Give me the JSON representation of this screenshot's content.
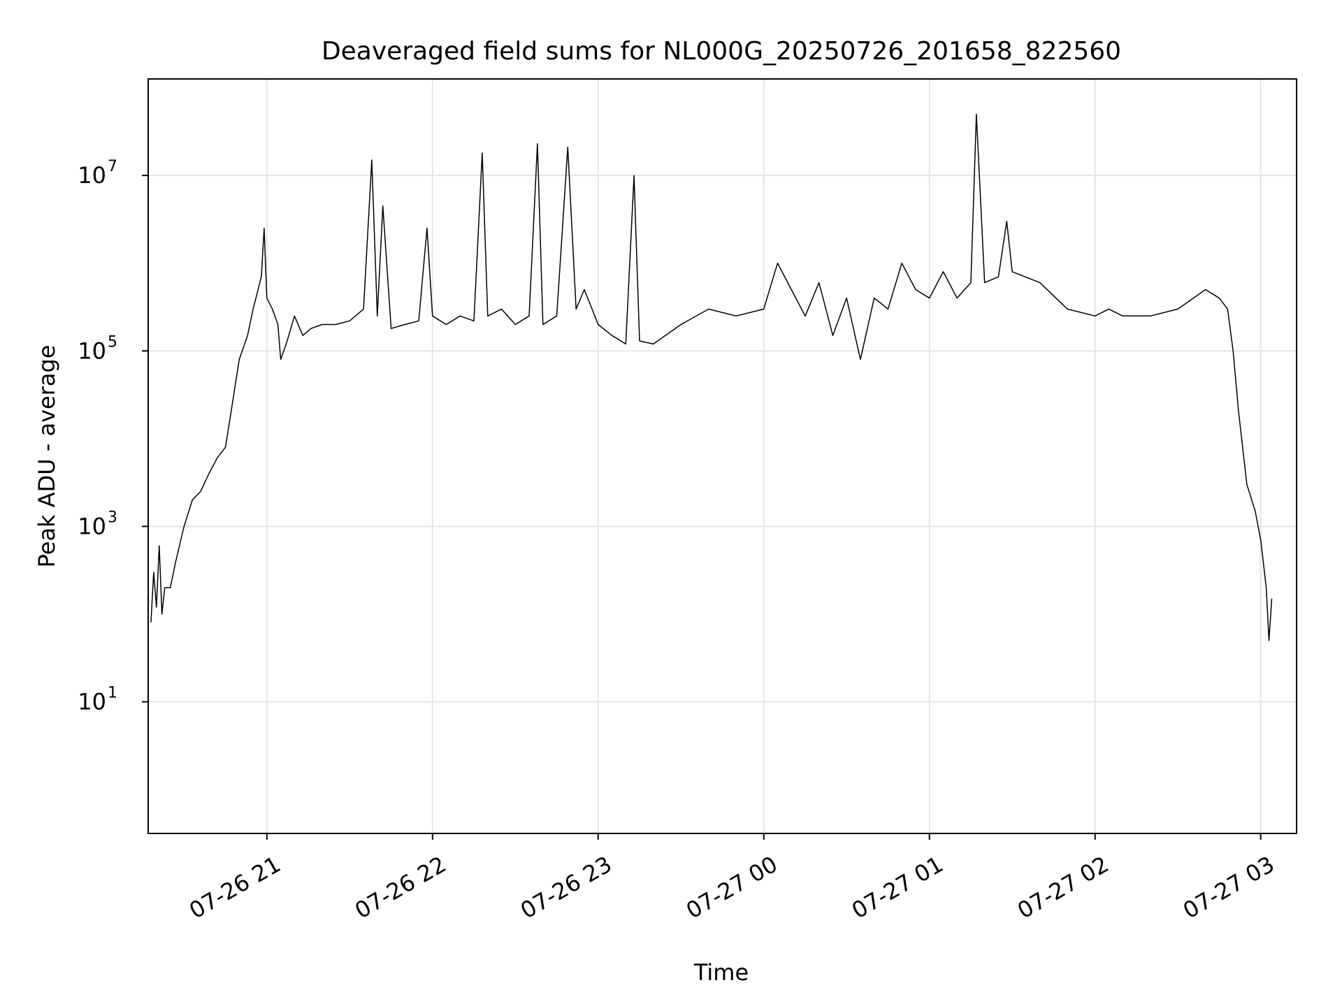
{
  "chart_data": {
    "type": "line",
    "title": "Deaveraged field sums for NL000G_20250726_201658_822560",
    "xlabel": "Time",
    "ylabel": "Peak ADU - average",
    "yscale": "log",
    "grid": true,
    "line_color": "#000000",
    "grid_color": "#e5e5e5",
    "xlim": [
      "2025-07-26 20:17",
      "2025-07-27 03:13"
    ],
    "ylim_log10": [
      -0.5,
      8.1
    ],
    "x_ticks": [
      {
        "t": "2025-07-26 21:00",
        "label": "07-26 21"
      },
      {
        "t": "2025-07-26 22:00",
        "label": "07-26 22"
      },
      {
        "t": "2025-07-26 23:00",
        "label": "07-26 23"
      },
      {
        "t": "2025-07-27 00:00",
        "label": "07-27 00"
      },
      {
        "t": "2025-07-27 01:00",
        "label": "07-27 01"
      },
      {
        "t": "2025-07-27 02:00",
        "label": "07-27 02"
      },
      {
        "t": "2025-07-27 03:00",
        "label": "07-27 03"
      }
    ],
    "y_ticks": [
      {
        "value": 10,
        "base": "10",
        "exp": "1"
      },
      {
        "value": 1000,
        "base": "10",
        "exp": "3"
      },
      {
        "value": 100000,
        "base": "10",
        "exp": "5"
      },
      {
        "value": 10000000,
        "base": "10",
        "exp": "7"
      }
    ],
    "series": [
      {
        "points": [
          [
            "2025-07-26 20:18",
            80
          ],
          [
            "2025-07-26 20:19",
            300
          ],
          [
            "2025-07-26 20:20",
            120
          ],
          [
            "2025-07-26 20:21",
            600
          ],
          [
            "2025-07-26 20:22",
            100
          ],
          [
            "2025-07-26 20:23",
            200
          ],
          [
            "2025-07-26 20:25",
            200
          ],
          [
            "2025-07-26 20:27",
            400
          ],
          [
            "2025-07-26 20:30",
            1000
          ],
          [
            "2025-07-26 20:33",
            2000
          ],
          [
            "2025-07-26 20:36",
            2500
          ],
          [
            "2025-07-26 20:39",
            4000
          ],
          [
            "2025-07-26 20:42",
            6000
          ],
          [
            "2025-07-26 20:45",
            8000
          ],
          [
            "2025-07-26 20:47",
            20000
          ],
          [
            "2025-07-26 20:50",
            80000
          ],
          [
            "2025-07-26 20:53",
            150000
          ],
          [
            "2025-07-26 20:55",
            300000
          ],
          [
            "2025-07-26 20:58",
            700000
          ],
          [
            "2025-07-26 20:59",
            2500000
          ],
          [
            "2025-07-26 21:00",
            400000
          ],
          [
            "2025-07-26 21:02",
            300000
          ],
          [
            "2025-07-26 21:04",
            200000
          ],
          [
            "2025-07-26 21:05",
            80000
          ],
          [
            "2025-07-26 21:07",
            120000
          ],
          [
            "2025-07-26 21:10",
            250000
          ],
          [
            "2025-07-26 21:13",
            150000
          ],
          [
            "2025-07-26 21:16",
            180000
          ],
          [
            "2025-07-26 21:20",
            200000
          ],
          [
            "2025-07-26 21:25",
            200000
          ],
          [
            "2025-07-26 21:30",
            220000
          ],
          [
            "2025-07-26 21:35",
            300000
          ],
          [
            "2025-07-26 21:38",
            15000000
          ],
          [
            "2025-07-26 21:40",
            250000
          ],
          [
            "2025-07-26 21:42",
            4500000
          ],
          [
            "2025-07-26 21:45",
            180000
          ],
          [
            "2025-07-26 21:50",
            200000
          ],
          [
            "2025-07-26 21:55",
            220000
          ],
          [
            "2025-07-26 21:58",
            2500000
          ],
          [
            "2025-07-26 22:00",
            250000
          ],
          [
            "2025-07-26 22:05",
            200000
          ],
          [
            "2025-07-26 22:10",
            250000
          ],
          [
            "2025-07-26 22:15",
            220000
          ],
          [
            "2025-07-26 22:18",
            18000000
          ],
          [
            "2025-07-26 22:20",
            250000
          ],
          [
            "2025-07-26 22:25",
            300000
          ],
          [
            "2025-07-26 22:30",
            200000
          ],
          [
            "2025-07-26 22:35",
            250000
          ],
          [
            "2025-07-26 22:38",
            23000000
          ],
          [
            "2025-07-26 22:40",
            200000
          ],
          [
            "2025-07-26 22:45",
            250000
          ],
          [
            "2025-07-26 22:49",
            21000000
          ],
          [
            "2025-07-26 22:52",
            300000
          ],
          [
            "2025-07-26 22:55",
            500000
          ],
          [
            "2025-07-26 23:00",
            200000
          ],
          [
            "2025-07-26 23:05",
            150000
          ],
          [
            "2025-07-26 23:10",
            120000
          ],
          [
            "2025-07-26 23:13",
            10000000
          ],
          [
            "2025-07-26 23:15",
            130000
          ],
          [
            "2025-07-26 23:20",
            120000
          ],
          [
            "2025-07-26 23:30",
            200000
          ],
          [
            "2025-07-26 23:40",
            300000
          ],
          [
            "2025-07-26 23:50",
            250000
          ],
          [
            "2025-07-27 00:00",
            300000
          ],
          [
            "2025-07-27 00:05",
            1000000
          ],
          [
            "2025-07-27 00:10",
            500000
          ],
          [
            "2025-07-27 00:15",
            250000
          ],
          [
            "2025-07-27 00:20",
            600000
          ],
          [
            "2025-07-27 00:25",
            150000
          ],
          [
            "2025-07-27 00:30",
            400000
          ],
          [
            "2025-07-27 00:35",
            80000
          ],
          [
            "2025-07-27 00:40",
            400000
          ],
          [
            "2025-07-27 00:45",
            300000
          ],
          [
            "2025-07-27 00:50",
            1000000
          ],
          [
            "2025-07-27 00:55",
            500000
          ],
          [
            "2025-07-27 01:00",
            400000
          ],
          [
            "2025-07-27 01:05",
            800000
          ],
          [
            "2025-07-27 01:10",
            400000
          ],
          [
            "2025-07-27 01:15",
            600000
          ],
          [
            "2025-07-27 01:17",
            50000000
          ],
          [
            "2025-07-27 01:20",
            600000
          ],
          [
            "2025-07-27 01:25",
            700000
          ],
          [
            "2025-07-27 01:28",
            3000000
          ],
          [
            "2025-07-27 01:30",
            800000
          ],
          [
            "2025-07-27 01:40",
            600000
          ],
          [
            "2025-07-27 01:50",
            300000
          ],
          [
            "2025-07-27 02:00",
            250000
          ],
          [
            "2025-07-27 02:05",
            300000
          ],
          [
            "2025-07-27 02:10",
            250000
          ],
          [
            "2025-07-27 02:20",
            250000
          ],
          [
            "2025-07-27 02:30",
            300000
          ],
          [
            "2025-07-27 02:40",
            500000
          ],
          [
            "2025-07-27 02:45",
            400000
          ],
          [
            "2025-07-27 02:48",
            300000
          ],
          [
            "2025-07-27 02:50",
            100000
          ],
          [
            "2025-07-27 02:52",
            20000
          ],
          [
            "2025-07-27 02:55",
            3000
          ],
          [
            "2025-07-27 02:58",
            1500
          ],
          [
            "2025-07-27 03:00",
            700
          ],
          [
            "2025-07-27 03:02",
            200
          ],
          [
            "2025-07-27 03:03",
            50
          ],
          [
            "2025-07-27 03:04",
            150
          ]
        ]
      }
    ]
  }
}
